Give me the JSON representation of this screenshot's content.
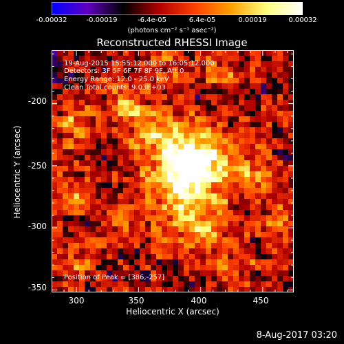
{
  "title": "Reconstructed RHESSI Image",
  "annotations": {
    "time": "19-Aug-2015 15:55:12.000 to 16:05:12.000",
    "detectors": "Detectors: 3F 5F 6F 7F 8F 9F, Att 0",
    "energy": "Energy Range: 12.0 - 25.0 keV",
    "clean": "Clean     Total counts: 9.03E+03",
    "peak": "Position of Peak = [386,-257]"
  },
  "colorbar": {
    "ticks": [
      "-0.00032",
      "-0.00019",
      "-6.4e-05",
      "6.4e-05",
      "0.00019",
      "0.00032"
    ],
    "units": "(photons cm⁻² s⁻¹ asec⁻²)",
    "colors": [
      "#0000ff",
      "#6000c0",
      "#000000",
      "#b00000",
      "#ff4000",
      "#ffa000",
      "#ffff80",
      "#ffffff"
    ]
  },
  "footer": "8-Aug-2017 03:20",
  "chart_data": {
    "type": "heatmap",
    "title": "Reconstructed RHESSI Image",
    "xlabel": "Heliocentric X (arcsec)",
    "ylabel": "Heliocentric Y (arcsec)",
    "xlim": [
      280,
      475
    ],
    "ylim": [
      -352,
      -157
    ],
    "xticks": [
      300,
      350,
      400,
      450
    ],
    "yticks": [
      -200,
      -250,
      -300,
      -350
    ],
    "peak": [
      386,
      -257
    ],
    "sources": [
      {
        "x": 386,
        "y": -257,
        "amp": 1.0,
        "sigma": 18
      },
      {
        "x": 400,
        "y": -238,
        "amp": 0.55,
        "sigma": 16
      },
      {
        "x": 395,
        "y": -295,
        "amp": 0.5,
        "sigma": 18
      },
      {
        "x": 365,
        "y": -225,
        "amp": 0.45,
        "sigma": 14
      },
      {
        "x": 340,
        "y": -205,
        "amp": 0.45,
        "sigma": 13
      },
      {
        "x": 300,
        "y": -215,
        "amp": 0.42,
        "sigma": 14
      },
      {
        "x": 296,
        "y": -272,
        "amp": 0.38,
        "sigma": 12
      },
      {
        "x": 440,
        "y": -255,
        "amp": 0.45,
        "sigma": 14
      },
      {
        "x": 460,
        "y": -292,
        "amp": 0.4,
        "sigma": 10
      },
      {
        "x": 345,
        "y": -290,
        "amp": 0.35,
        "sigma": 14
      },
      {
        "x": 430,
        "y": -330,
        "amp": 0.35,
        "sigma": 12
      },
      {
        "x": 300,
        "y": -330,
        "amp": 0.3,
        "sigma": 12
      },
      {
        "x": 415,
        "y": -175,
        "amp": 0.3,
        "sigma": 12
      },
      {
        "x": 370,
        "y": -170,
        "amp": 0.25,
        "sigma": 12
      }
    ]
  }
}
